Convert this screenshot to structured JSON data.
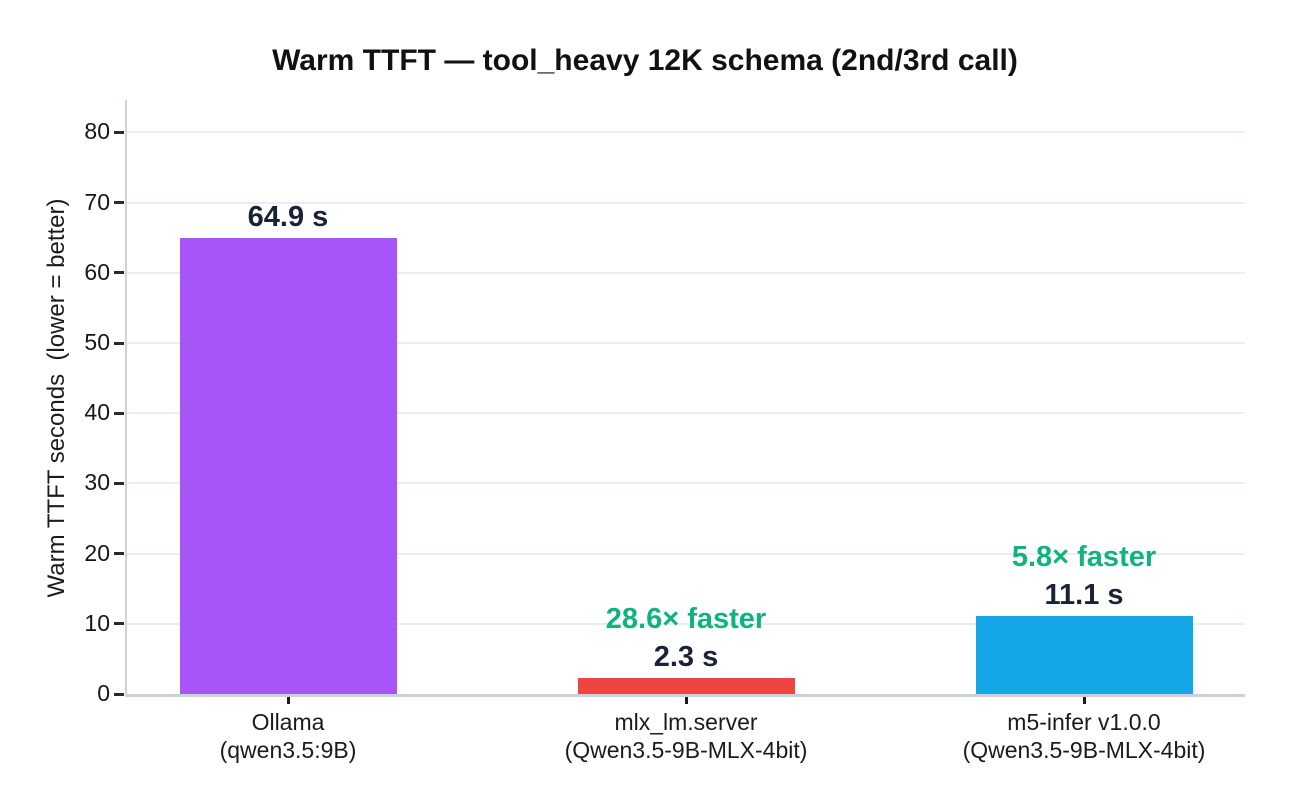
{
  "chart_data": {
    "type": "bar",
    "title": "Warm TTFT — tool_heavy 12K schema (2nd/3rd call)",
    "ylabel": "Warm TTFT seconds  (lower = better)",
    "xlabel": "",
    "ylim": [
      0,
      85
    ],
    "yticks": [
      0,
      10,
      20,
      30,
      40,
      50,
      60,
      70,
      80
    ],
    "grid": true,
    "legend": false,
    "categories": [
      "Ollama (qwen3.5:9B)",
      "mlx_lm.server (Qwen3.5-9B-MLX-4bit)",
      "m5-infer v1.0.0 (Qwen3.5-9B-MLX-4bit)"
    ],
    "values": [
      64.9,
      2.3,
      11.1
    ],
    "bars": [
      {
        "category_line1": "Ollama",
        "category_line2": "(qwen3.5:9B)",
        "value": 64.9,
        "value_label": "64.9 s",
        "annotation": "",
        "color": "#a855f7"
      },
      {
        "category_line1": "mlx_lm.server",
        "category_line2": "(Qwen3.5-9B-MLX-4bit)",
        "value": 2.3,
        "value_label": "2.3 s",
        "annotation": "28.6× faster",
        "color": "#ef4444"
      },
      {
        "category_line1": "m5-infer v1.0.0",
        "category_line2": "(Qwen3.5-9B-MLX-4bit)",
        "value": 11.1,
        "value_label": "11.1 s",
        "annotation": "5.8× faster",
        "color": "#14a5e8"
      }
    ],
    "colors": {
      "value_label": "#1a2335",
      "annotation": "#10b27e",
      "grid": "#e9eef6",
      "axis": "#c9d1db",
      "tick_label": "#161616"
    }
  }
}
